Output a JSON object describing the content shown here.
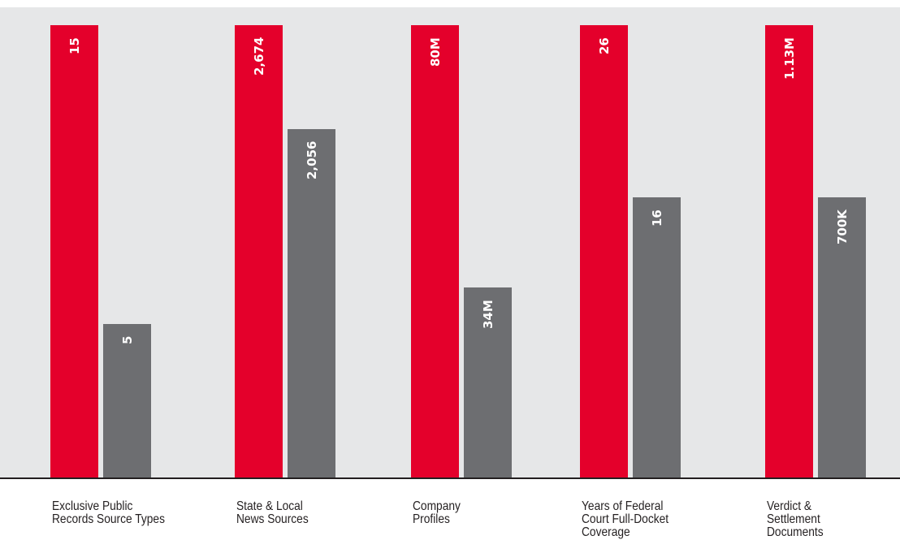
{
  "chart_data": {
    "type": "bar",
    "ylim": [
      0,
      100
    ],
    "grid": false,
    "legend": "none",
    "colors": {
      "background": "#e6e7e8",
      "series_red": "#e4002b",
      "series_gray": "#6d6e71",
      "baseline": "#231f20",
      "label_text": "#ffffff",
      "category_text": "#231f20"
    },
    "categories": [
      {
        "lines": [
          "Exclusive Public",
          "Records Source Types"
        ]
      },
      {
        "lines": [
          "State & Local",
          "News Sources"
        ]
      },
      {
        "lines": [
          "Company",
          "Profiles"
        ]
      },
      {
        "lines": [
          "Years of Federal",
          "Court Full-Docket",
          "Coverage"
        ]
      },
      {
        "lines": [
          "Verdict &",
          "Settlement",
          "Documents"
        ]
      }
    ],
    "series": [
      {
        "color": "#e4002b",
        "values": [
          100,
          100,
          100,
          100,
          100
        ],
        "labels": [
          "15",
          "2,674",
          "80M",
          "26",
          "1.13M"
        ]
      },
      {
        "color": "#6d6e71",
        "values": [
          34,
          77,
          42,
          62,
          62
        ],
        "labels": [
          "5",
          "2,056",
          "34M",
          "16",
          "700K"
        ]
      }
    ]
  }
}
